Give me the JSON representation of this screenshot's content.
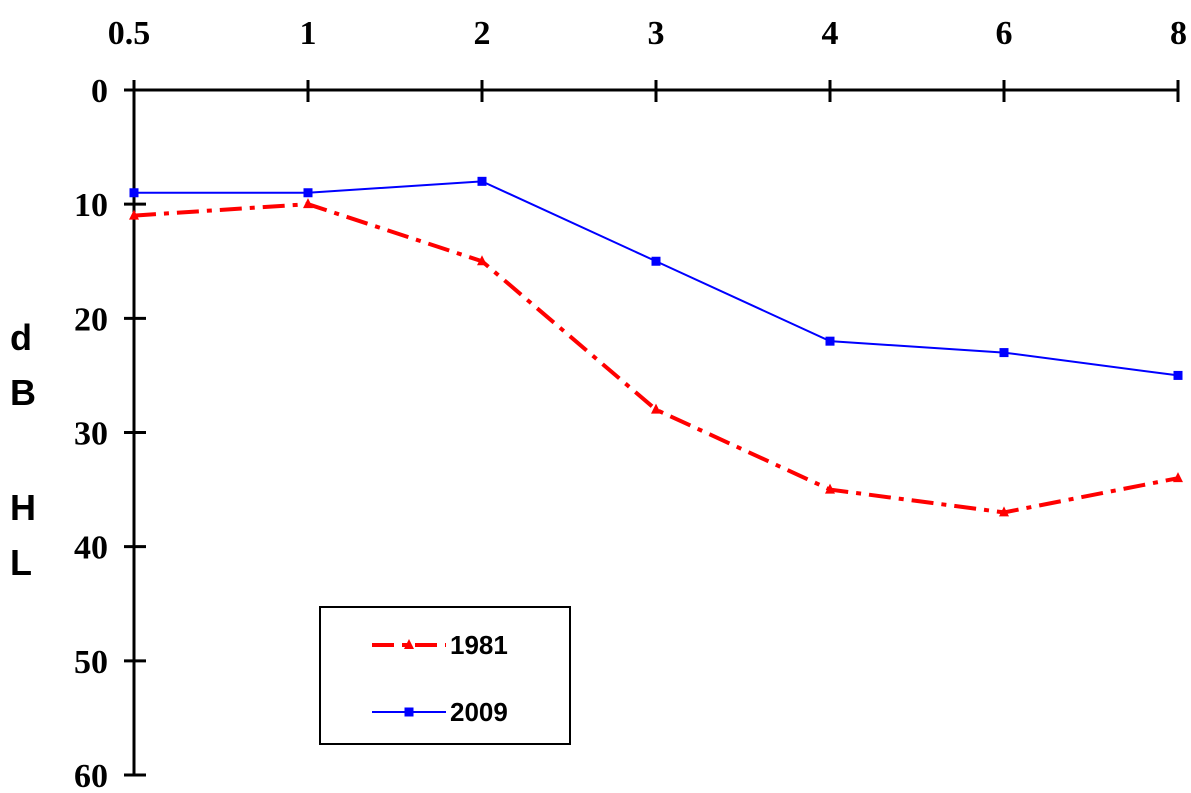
{
  "chart_data": {
    "type": "line",
    "x_axis_position": "top",
    "y_axis_inverted": true,
    "categories": [
      "0.5",
      "1",
      "2",
      "3",
      "4",
      "6",
      "8"
    ],
    "ylabel_letters": [
      "d",
      "B",
      "H",
      "L"
    ],
    "ylim": [
      0,
      60
    ],
    "yticks": [
      0,
      10,
      20,
      30,
      40,
      50,
      60
    ],
    "grid": false,
    "legend_placement": "bottom-left",
    "series": [
      {
        "name": "1981",
        "values": [
          11,
          10,
          15,
          28,
          35,
          37,
          34
        ],
        "color": "#ff0000",
        "marker": "triangle",
        "line_style": "dash-dot"
      },
      {
        "name": "2009",
        "values": [
          9,
          9,
          8,
          15,
          22,
          23,
          25
        ],
        "color": "#0000ff",
        "marker": "square",
        "line_style": "solid"
      }
    ]
  }
}
